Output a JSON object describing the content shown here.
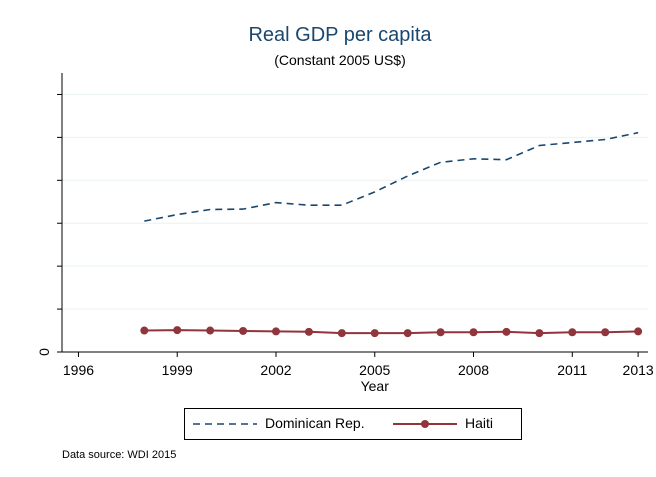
{
  "chart_data": {
    "type": "line",
    "title": "Real GDP per capita",
    "subtitle": "(Constant 2005 US$)",
    "xlabel": "Year",
    "ylabel": "",
    "x_ticks": [
      "1996",
      "1999",
      "2002",
      "2005",
      "2008",
      "2011",
      "2013"
    ],
    "x_tick_values": [
      1996,
      1999,
      2002,
      2005,
      2008,
      2011,
      2013
    ],
    "y_tick_labels": [
      "0"
    ],
    "xlim": [
      1995.5,
      2013.3
    ],
    "ylim": [
      0,
      6500
    ],
    "y_ticks_every": 1000,
    "grid": true,
    "legend_position": "bottom",
    "x": [
      1998,
      1999,
      2000,
      2001,
      2002,
      2003,
      2004,
      2005,
      2006,
      2007,
      2008,
      2009,
      2010,
      2011,
      2012,
      2013
    ],
    "series": [
      {
        "name": "Dominican Rep.",
        "color": "#1a476f",
        "style": "dashed",
        "values": [
          3050,
          3200,
          3320,
          3330,
          3480,
          3420,
          3420,
          3730,
          4100,
          4420,
          4500,
          4480,
          4810,
          4880,
          4950,
          5110
        ]
      },
      {
        "name": "Haiti",
        "color": "#90353b",
        "style": "solid-markers",
        "values": [
          500,
          510,
          500,
          490,
          480,
          470,
          440,
          440,
          440,
          460,
          460,
          470,
          440,
          460,
          460,
          480
        ]
      }
    ]
  },
  "note": "Data source: WDI 2015"
}
